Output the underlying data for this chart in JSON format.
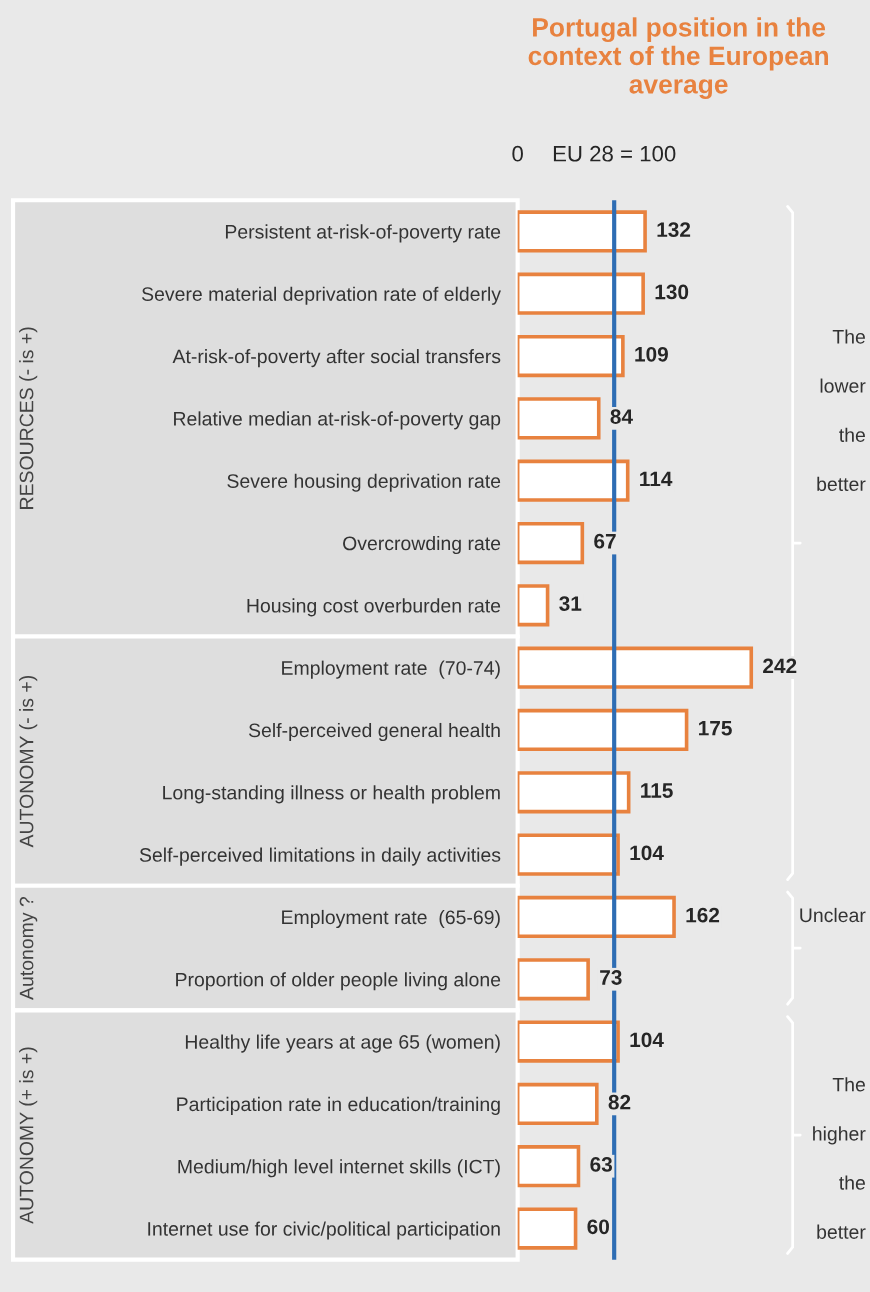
{
  "chart_data": {
    "type": "bar",
    "orientation": "horizontal",
    "title": "Portugal position in the context of the European average",
    "categories": [
      "Persistent at-risk-of-poverty rate",
      "Severe material deprivation rate of elderly",
      "At-risk-of-poverty after social transfers",
      "Relative median at-risk-of-poverty gap",
      "Severe housing deprivation rate",
      "Overcrowding rate",
      "Housing cost overburden rate",
      "Employment rate  (70-74)",
      "Self-perceived general health",
      "Long-standing illness or health problem",
      "Self-perceived limitations in daily activities",
      "Employment rate  (65-69)",
      "Proportion of older people living alone",
      "Healthy life years at age 65 (women)",
      "Participation rate in education/training",
      "Medium/high level internet skills (ICT)",
      "Internet use for civic/political participation"
    ],
    "series": [
      {
        "color": "#e8823f",
        "values": [
          132,
          130,
          109,
          84,
          114,
          67,
          31,
          242,
          175,
          115,
          104,
          162,
          73,
          104,
          82,
          63,
          60
        ]
      }
    ],
    "data_labels": true,
    "ref_lines": [
      {
        "axis": "x",
        "value": 100,
        "label": "EU 28 = 100",
        "color": "#2e6db4"
      }
    ],
    "annotations": [
      "RESOURCES (- is +)",
      "AUTONOMY (- is +)",
      "Autonomy ?",
      "AUTONOMY (+ is +)",
      "The lower the better",
      "Unclear",
      "The higher the better",
      "0"
    ]
  }
}
